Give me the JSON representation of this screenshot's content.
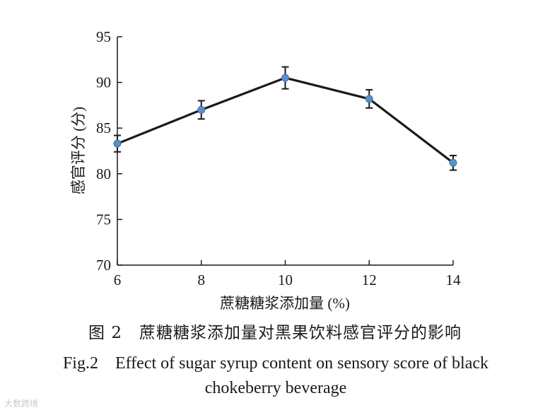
{
  "chart_data": {
    "type": "line",
    "x": [
      6,
      8,
      10,
      12,
      14
    ],
    "series": [
      {
        "name": "感官评分",
        "values": [
          83.3,
          87.0,
          90.5,
          88.2,
          81.2
        ],
        "errors": [
          0.9,
          1.0,
          1.2,
          1.0,
          0.8
        ]
      }
    ],
    "xlabel": "蔗糖糖浆添加量 (%)",
    "ylabel": "感官评分 (分)",
    "xlim": [
      6,
      14
    ],
    "ylim": [
      70,
      95
    ],
    "xticks": [
      6,
      8,
      10,
      12,
      14
    ],
    "yticks": [
      70,
      75,
      80,
      85,
      90,
      95
    ],
    "grid": false,
    "line_color": "#1a1a1a",
    "marker_color": "#5b8fc7"
  },
  "caption": {
    "cn": "图 2　蔗糖糖浆添加量对黑果饮料感官评分的影响",
    "en_line1": "Fig.2　Effect of sugar syrup content on sensory score of black",
    "en_line2": "chokeberry beverage"
  },
  "watermark": "大数跨境"
}
